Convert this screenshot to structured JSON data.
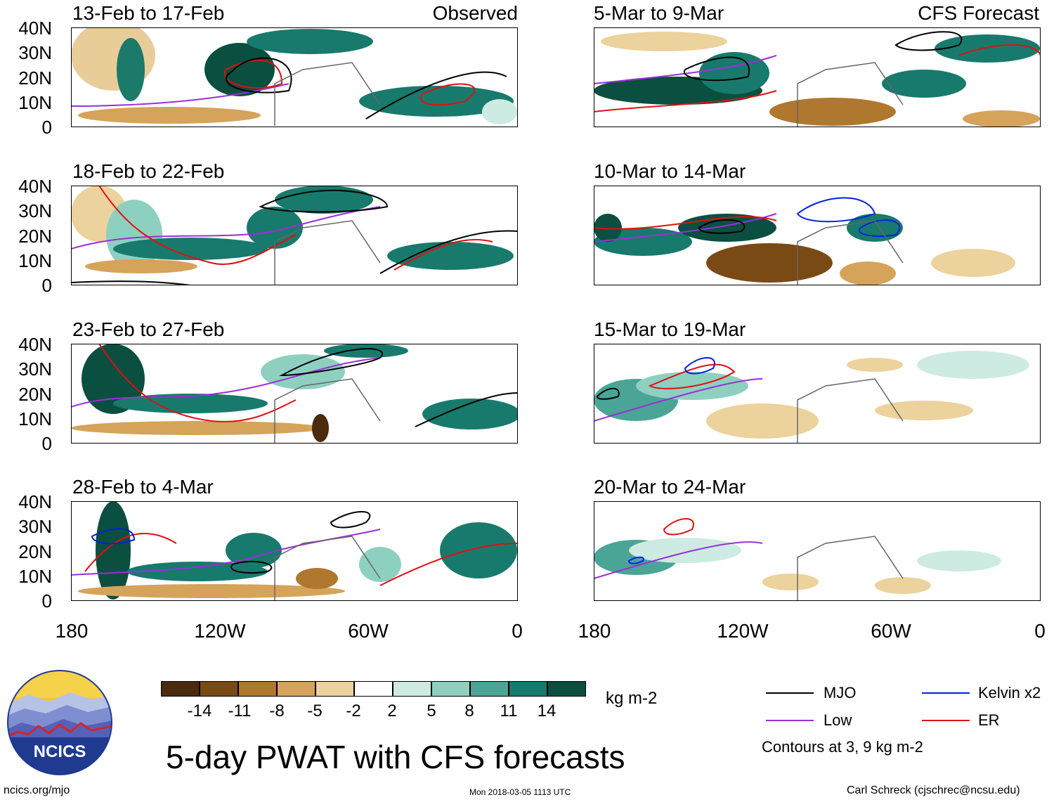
{
  "figure_title": "5-day PWAT with CFS forecasts",
  "observed_label": "Observed",
  "forecast_label": "CFS Forecast",
  "panels_left": [
    {
      "period": "13-Feb to 17-Feb"
    },
    {
      "period": "18-Feb to 22-Feb"
    },
    {
      "period": "23-Feb to 27-Feb"
    },
    {
      "period": "28-Feb to 4-Mar"
    }
  ],
  "panels_right": [
    {
      "period": "5-Mar to 9-Mar"
    },
    {
      "period": "10-Mar to 14-Mar"
    },
    {
      "period": "15-Mar to 19-Mar"
    },
    {
      "period": "20-Mar to 24-Mar"
    }
  ],
  "y_ticks": [
    "40N",
    "30N",
    "20N",
    "10N",
    "0"
  ],
  "x_ticks": [
    "180",
    "120W",
    "60W",
    "0"
  ],
  "colorbar": {
    "unit": "kg m-2",
    "tick_labels": [
      "-14",
      "-11",
      "-8",
      "-5",
      "-2",
      "2",
      "5",
      "8",
      "11",
      "14"
    ],
    "colors": [
      "#4a2b0e",
      "#7a4a14",
      "#b0772e",
      "#d5a35a",
      "#ecd29c",
      "#f8efd8",
      "#ffffff",
      "#cdebe2",
      "#8ed0c0",
      "#4aa596",
      "#187a6c",
      "#0a4f40"
    ]
  },
  "legend": {
    "mjo": {
      "label": "MJO",
      "color": "#000000"
    },
    "kelvin": {
      "label": "Kelvin x2",
      "color": "#0022dd"
    },
    "low": {
      "label": "Low",
      "color": "#9a2fd8"
    },
    "er": {
      "label": "ER",
      "color": "#e01010"
    },
    "note": "Contours at 3, 9 kg m-2"
  },
  "footer": {
    "logo_text": "NCICS",
    "url": "ncics.org/mjo",
    "timestamp": "Mon 2018-03-05 1113 UTC",
    "author": "Carl Schreck (cjschrec@ncsu.edu)"
  }
}
